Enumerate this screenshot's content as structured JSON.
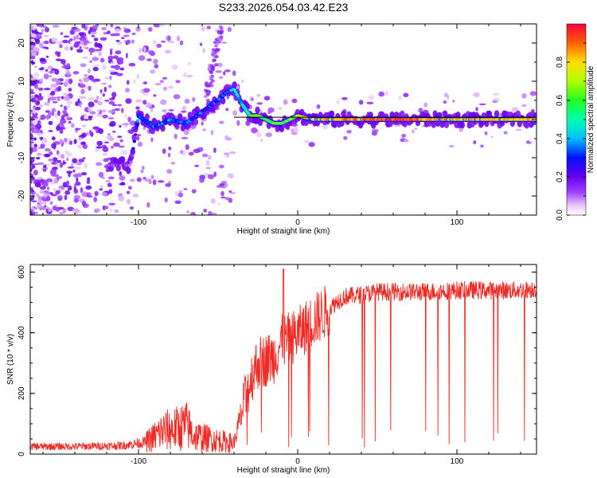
{
  "title": "S233.2026.054.03.42.E23",
  "chart_data": [
    {
      "type": "heatmap",
      "name": "spectrogram",
      "xlabel": "Height of straight line (km)",
      "ylabel": "Frequency (Hz)",
      "xlim": [
        -168,
        150
      ],
      "ylim": [
        -25,
        25
      ],
      "xticks": [
        -100,
        0,
        100
      ],
      "yticks": [
        -20,
        -10,
        0,
        10,
        20
      ],
      "colorbar": {
        "label": "Normalized spectral amplitude",
        "range": [
          0.0,
          1.0
        ],
        "ticks": [
          0.0,
          0.2,
          0.4,
          0.6,
          0.8
        ]
      },
      "signal_ridge": {
        "x": [
          -115,
          -105,
          -100,
          -90,
          -80,
          -70,
          -60,
          -50,
          -45,
          -40,
          -35,
          -30,
          -25,
          -20,
          -15,
          -10,
          -5,
          0,
          10,
          30,
          60,
          100,
          150
        ],
        "freq": [
          -12,
          -12,
          1,
          -2,
          0,
          -1,
          2,
          5,
          7,
          8,
          4,
          1,
          1,
          0,
          -1,
          -1,
          0,
          1,
          0,
          0,
          0,
          0,
          0
        ],
        "amplitude": [
          0.15,
          0.15,
          0.35,
          0.3,
          0.35,
          0.3,
          0.3,
          0.3,
          0.35,
          0.4,
          0.45,
          0.6,
          0.65,
          0.6,
          0.6,
          0.65,
          0.6,
          0.75,
          0.8,
          0.85,
          0.95,
          0.8,
          0.8
        ]
      }
    },
    {
      "type": "line",
      "name": "snr",
      "xlabel": "Height of straight line (km)",
      "ylabel": "SNR (10 * v/v)",
      "xlim": [
        -168,
        150
      ],
      "ylim": [
        0,
        625
      ],
      "xticks": [
        -100,
        0,
        100
      ],
      "yticks": [
        0,
        200,
        400,
        600
      ],
      "color": "#ee2a24",
      "series": [
        {
          "name": "SNR",
          "x": [
            -168,
            -140,
            -110,
            -95,
            -85,
            -80,
            -75,
            -70,
            -65,
            -60,
            -50,
            -40,
            -32,
            -28,
            -25,
            -20,
            -15,
            -10,
            -5,
            0,
            5,
            10,
            15,
            20,
            25,
            30,
            40,
            50,
            60,
            80,
            100,
            120,
            140,
            150
          ],
          "values": [
            25,
            25,
            28,
            40,
            75,
            80,
            85,
            95,
            60,
            55,
            45,
            35,
            200,
            270,
            300,
            310,
            320,
            370,
            380,
            395,
            420,
            440,
            460,
            480,
            505,
            520,
            525,
            535,
            535,
            535,
            540,
            540,
            540,
            545
          ]
        }
      ]
    }
  ]
}
